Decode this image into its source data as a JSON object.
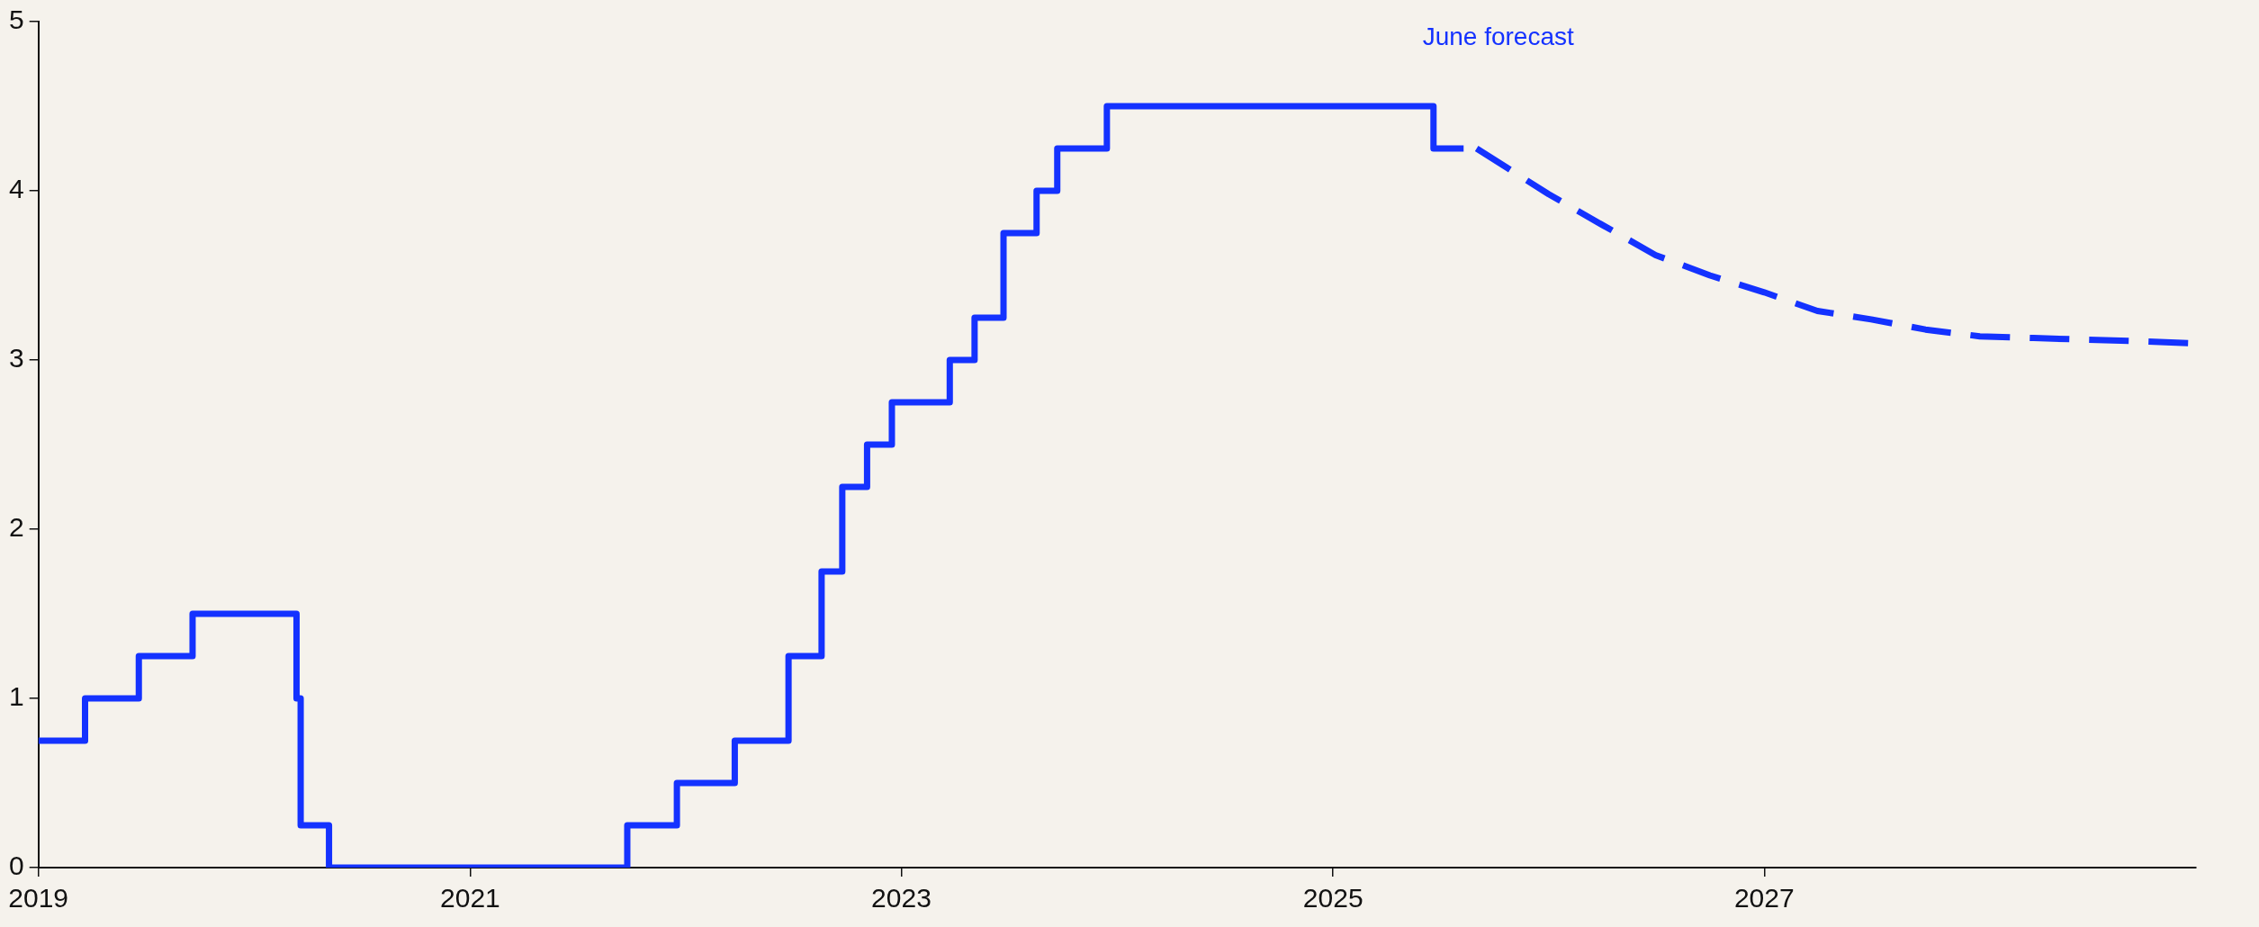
{
  "chart_data": {
    "type": "step",
    "xlim": [
      "2019",
      "2029"
    ],
    "xticks": [
      "2019",
      "2021",
      "2023",
      "2025",
      "2027"
    ],
    "ylim": [
      0,
      5
    ],
    "yticks": [
      0,
      1,
      2,
      3,
      4,
      5
    ],
    "grid": false,
    "legend": false,
    "series": [
      {
        "type": "step",
        "color": "#1432ff",
        "line_style": "solid",
        "x": [
          "2019-01-01",
          "2019-03-21",
          "2019-06-20",
          "2019-09-19",
          "2020-03-13",
          "2020-03-20",
          "2020-05-07",
          "2021-09-24",
          "2021-12-17",
          "2022-03-25",
          "2022-06-24",
          "2022-08-19",
          "2022-09-23",
          "2022-11-04",
          "2022-12-16",
          "2023-03-24",
          "2023-05-05",
          "2023-06-23",
          "2023-08-18",
          "2023-09-22",
          "2023-12-15",
          "2025-06-20",
          "2025-08-10"
        ],
        "values": [
          0.75,
          1,
          1.25,
          1.5,
          1,
          0.25,
          0,
          0.25,
          0.5,
          0.75,
          1.25,
          1.75,
          2.25,
          2.5,
          2.75,
          3,
          3.25,
          3.75,
          4,
          4.25,
          4.5,
          4.25,
          4.25
        ]
      },
      {
        "type": "line",
        "name": "June forecast",
        "color": "#1432ff",
        "line_style": "dashed",
        "x": [
          "2025-09-01",
          "2026-01-01",
          "2026-04-01",
          "2026-07-01",
          "2026-10-01",
          "2027-01-01",
          "2027-04-01",
          "2027-07-01",
          "2027-10-01",
          "2028-01-01",
          "2028-04-01",
          "2028-07-01",
          "2028-10-01",
          "2028-12-20"
        ],
        "values": [
          4.25,
          3.98,
          3.8,
          3.62,
          3.5,
          3.4,
          3.29,
          3.24,
          3.18,
          3.14,
          3.13,
          3.12,
          3.11,
          3.1
        ]
      }
    ]
  }
}
